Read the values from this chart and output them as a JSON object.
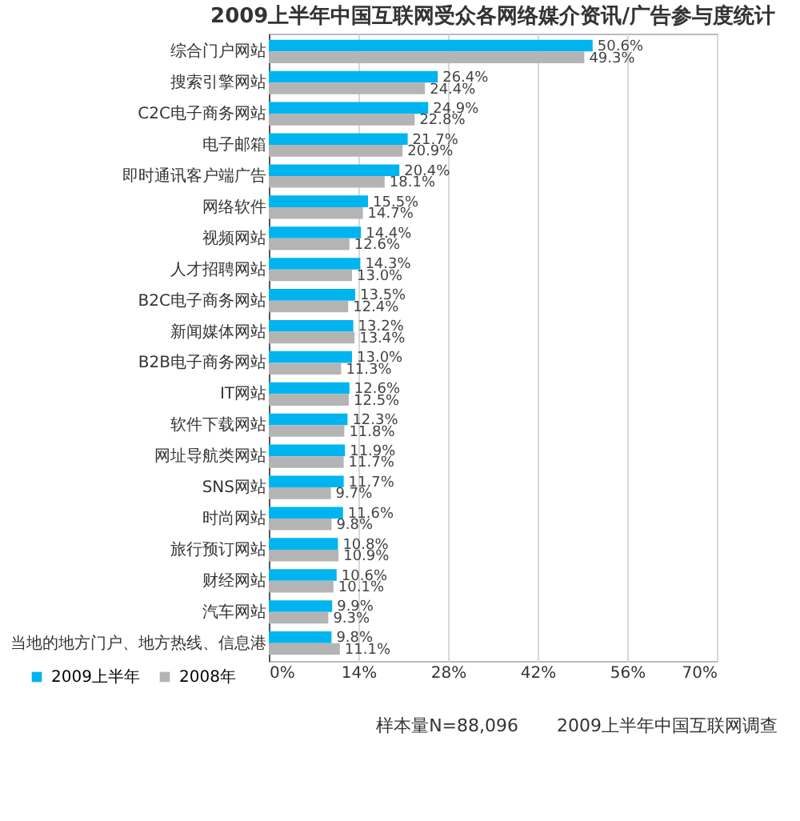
{
  "chart_data": {
    "type": "bar",
    "orientation": "horizontal",
    "title": "2009上半年中国互联网受众各网络媒介资讯/广告参与度统计",
    "categories": [
      "综合门户网站",
      "搜索引擎网站",
      "C2C电子商务网站",
      "电子邮箱",
      "即时通讯客户端广告",
      "网络软件",
      "视频网站",
      "人才招聘网站",
      "B2C电子商务网站",
      "新闻媒体网站",
      "B2B电子商务网站",
      "IT网站",
      "软件下载网站",
      "网址导航类网站",
      "SNS网站",
      "时尚网站",
      "旅行预订网站",
      "财经网站",
      "汽车网站",
      "当地的地方门户、地方热线、信息港"
    ],
    "series": [
      {
        "name": "2009上半年",
        "color": "#00b4ef",
        "values": [
          50.6,
          26.4,
          24.9,
          21.7,
          20.4,
          15.5,
          14.4,
          14.3,
          13.5,
          13.2,
          13.0,
          12.6,
          12.3,
          11.9,
          11.7,
          11.6,
          10.8,
          10.6,
          9.9,
          9.8
        ],
        "value_labels": [
          "50.6%",
          "26.4%",
          "24.9%",
          "21.7%",
          "20.4%",
          "15.5%",
          "14.4%",
          "14.3%",
          "13.5%",
          "13.2%",
          "13.0%",
          "12.6%",
          "12.3%",
          "11.9%",
          "11.7%",
          "11.6%",
          "10.8%",
          "10.6%",
          "9.9%",
          "9.8%"
        ]
      },
      {
        "name": "2008年",
        "color": "#b4b4b4",
        "values": [
          49.3,
          24.4,
          22.8,
          20.9,
          18.1,
          14.7,
          12.6,
          13.0,
          12.4,
          13.4,
          11.3,
          12.5,
          11.8,
          11.7,
          9.7,
          9.8,
          10.9,
          10.1,
          9.3,
          11.1
        ],
        "value_labels": [
          "49.3%",
          "24.4%",
          "22.8%",
          "20.9%",
          "18.1%",
          "14.7%",
          "12.6%",
          "13.0%",
          "12.4%",
          "13.4%",
          "11.3%",
          "12.5%",
          "11.8%",
          "11.7%",
          "9.7%",
          "9.8%",
          "10.9%",
          "10.1%",
          "9.3%",
          "11.1%"
        ]
      }
    ],
    "xlim": [
      0,
      70
    ],
    "xticks": [
      {
        "value": 0,
        "label": "0%"
      },
      {
        "value": 14,
        "label": "14%"
      },
      {
        "value": 28,
        "label": "28%"
      },
      {
        "value": 42,
        "label": "42%"
      },
      {
        "value": 56,
        "label": "56%"
      },
      {
        "value": 70,
        "label": "70%"
      }
    ],
    "grid": "x",
    "legend": "bottom left",
    "annotations": [
      "样本量N=88,096",
      "2009上半年中国互联网调查"
    ]
  }
}
